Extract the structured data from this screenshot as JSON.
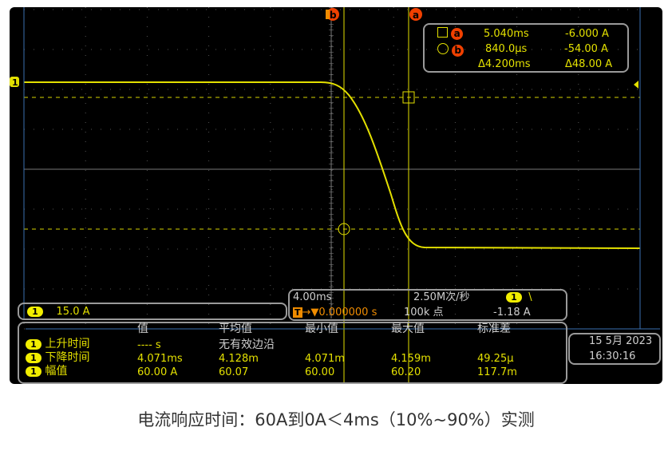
{
  "cursors": {
    "a_label": "a",
    "b_label": "b",
    "a_time": "5.040ms",
    "a_value": "-6.000 A",
    "b_time": "840.0µs",
    "b_value": "-54.00 A",
    "delta_time": "Δ4.200ms",
    "delta_value": "Δ48.00 A"
  },
  "channel": {
    "badge": "1",
    "scale": "15.0 A"
  },
  "timebase": {
    "scale": "4.00ms",
    "sample_rate": "2.50M次/秒",
    "trigger_icon": "T",
    "trigger_offset": "0.000000 s",
    "points": "100k 点",
    "trigger_channel": "1",
    "trigger_slope": "\\",
    "trigger_level": "-1.18 A"
  },
  "measurements": {
    "headers": [
      "值",
      "平均值",
      "最小值",
      "最大值",
      "标准差"
    ],
    "rows": [
      {
        "ch": "1",
        "name": "上升时间",
        "value": "---- s",
        "mean": "无有效边沿",
        "min": "",
        "max": "",
        "std": ""
      },
      {
        "ch": "1",
        "name": "下降时间",
        "value": "4.071ms",
        "mean": "4.128m",
        "min": "4.071m",
        "max": "4.159m",
        "std": "49.25µ"
      },
      {
        "ch": "1",
        "name": "幅值",
        "value": "60.00 A",
        "mean": "60.07",
        "min": "60.00",
        "max": "60.20",
        "std": "117.7m"
      }
    ]
  },
  "datetime": {
    "date": "15 5月 2023",
    "time": "16:30:16"
  },
  "colors": {
    "trace": "#e3e000",
    "cursor_marker": "#f04000",
    "trigger": "#f08c00",
    "background": "#000000"
  },
  "caption": "电流响应时间：60A到0A＜4ms（10%~90%）实测"
}
